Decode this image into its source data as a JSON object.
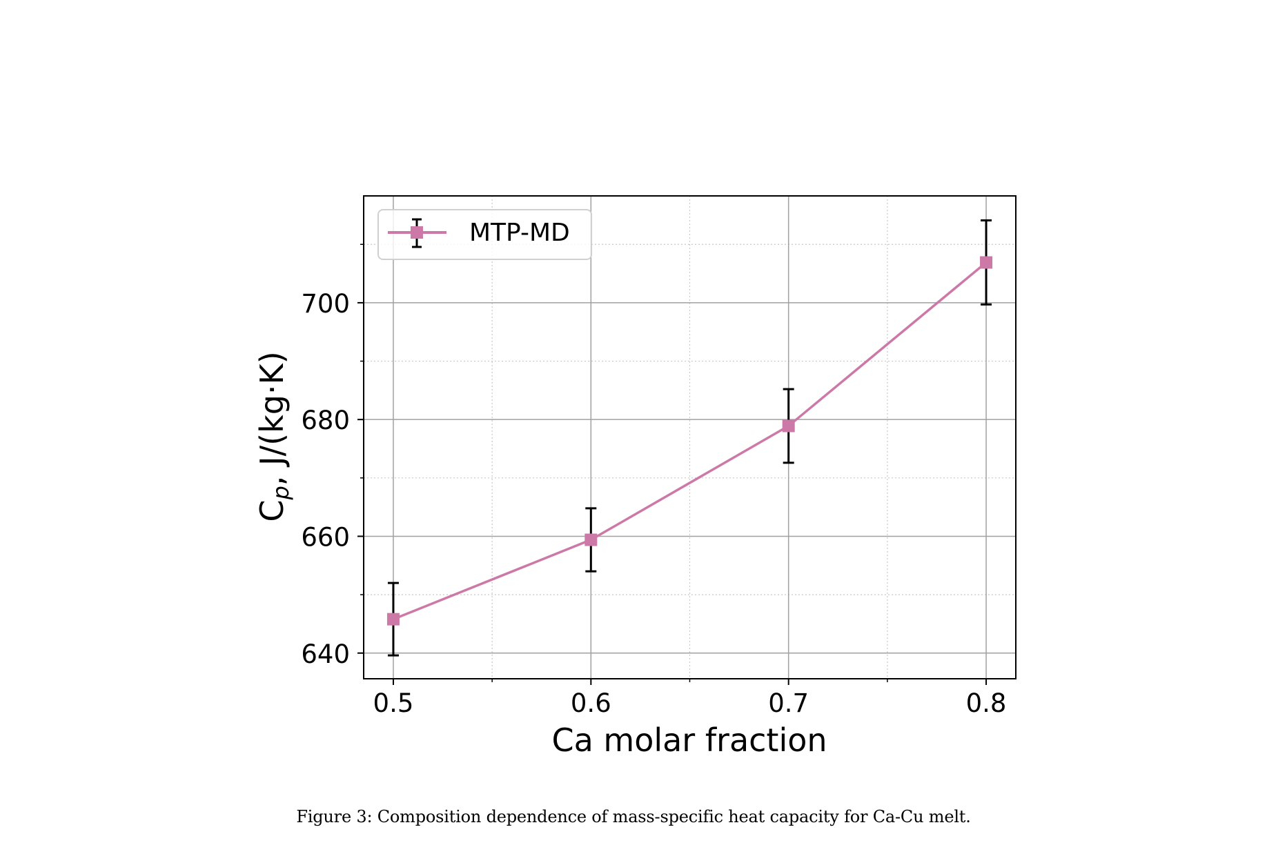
{
  "figure": {
    "caption": "Figure 3: Composition dependence of mass-specific heat capacity for Ca-Cu melt."
  },
  "axes": {
    "xlabel": "Ca molar fraction",
    "ylabel_main": "C",
    "ylabel_sub": "p",
    "ylabel_rest": ", J/(kg·K)",
    "xticks": [
      "0.5",
      "0.6",
      "0.7",
      "0.8"
    ],
    "yticks": [
      "640",
      "660",
      "680",
      "700"
    ]
  },
  "legend": {
    "label": "MTP-MD"
  },
  "colors": {
    "series": "#CC79A7",
    "errorbar": "#000000",
    "major_grid": "#a0a0a0",
    "minor_grid": "#c8c8c8"
  },
  "chart_data": {
    "type": "line",
    "title": "",
    "xlabel": "Ca molar fraction",
    "ylabel": "C_p, J/(kg·K)",
    "x": [
      0.5,
      0.6,
      0.7,
      0.8
    ],
    "series": [
      {
        "name": "MTP-MD",
        "values": [
          645.8,
          659.4,
          678.9,
          706.9
        ],
        "errors": [
          6.2,
          5.4,
          6.3,
          7.2
        ],
        "marker": "square",
        "color": "#CC79A7"
      }
    ],
    "xlim": [
      0.485,
      0.815
    ],
    "ylim": [
      635.6,
      718.3
    ],
    "xticks_major": [
      0.5,
      0.6,
      0.7,
      0.8
    ],
    "xticks_minor": [
      0.55,
      0.65,
      0.75
    ],
    "yticks_major": [
      640,
      660,
      680,
      700
    ],
    "yticks_minor": [
      650,
      670,
      690,
      710
    ],
    "grid": {
      "major": "solid",
      "minor": "dotted"
    },
    "legend_position": "upper left"
  }
}
